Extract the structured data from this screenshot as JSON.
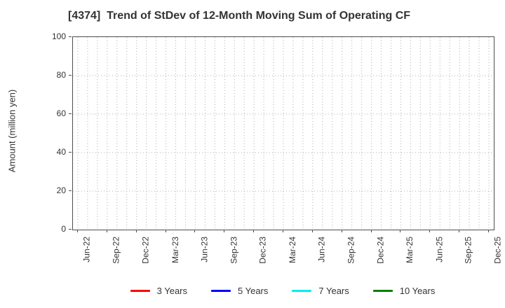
{
  "title": "[4374]  Trend of StDev of 12-Month Moving Sum of Operating CF",
  "y_axis": {
    "label": "Amount (million yen)",
    "ticks": [
      0,
      20,
      40,
      60,
      80,
      100
    ],
    "min": 0,
    "max": 100
  },
  "x_axis": {
    "tick_labels": [
      "Jun-22",
      "Sep-22",
      "Dec-22",
      "Mar-23",
      "Jun-23",
      "Sep-23",
      "Dec-23",
      "Mar-24",
      "Jun-24",
      "Sep-24",
      "Dec-24",
      "Mar-25",
      "Jun-25",
      "Sep-25",
      "Dec-25"
    ],
    "minor_gridline_count": 43,
    "label_every": 3
  },
  "legend": [
    {
      "label": "3 Years",
      "color": "#ff0000"
    },
    {
      "label": "5 Years",
      "color": "#0000ff"
    },
    {
      "label": "7 Years",
      "color": "#00eeee"
    },
    {
      "label": "10 Years",
      "color": "#008000"
    }
  ],
  "colors": {
    "grid": "#b0b0b0",
    "axis": "#4d4d4d",
    "text": "#333333",
    "background": "#ffffff"
  },
  "chart_data": {
    "type": "line",
    "title": "[4374]  Trend of StDev of 12-Month Moving Sum of Operating CF",
    "xlabel": "",
    "ylabel": "Amount (million yen)",
    "ylim": [
      0,
      100
    ],
    "yticks": [
      0,
      20,
      40,
      60,
      80,
      100
    ],
    "x_tick_labels": [
      "Jun-22",
      "Sep-22",
      "Dec-22",
      "Mar-23",
      "Jun-23",
      "Sep-23",
      "Dec-23",
      "Mar-24",
      "Jun-24",
      "Sep-24",
      "Dec-24",
      "Mar-25",
      "Jun-25",
      "Sep-25",
      "Dec-25"
    ],
    "grid": true,
    "grid_style": "dotted",
    "legend_position": "bottom",
    "series": [
      {
        "name": "3 Years",
        "color": "#ff0000",
        "values": []
      },
      {
        "name": "5 Years",
        "color": "#0000ff",
        "values": []
      },
      {
        "name": "7 Years",
        "color": "#00eeee",
        "values": []
      },
      {
        "name": "10 Years",
        "color": "#008000",
        "values": []
      }
    ]
  }
}
